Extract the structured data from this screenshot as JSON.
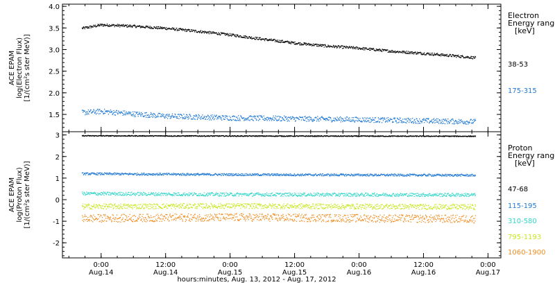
{
  "chart_data": [
    {
      "type": "scatter",
      "panel": "electron",
      "ylabel_lines": [
        "ACE EPAM",
        "log(Electron Flux)",
        "[1/(cm²s ster MeV)]"
      ],
      "ylim": [
        1.1,
        4.05
      ],
      "yticks": [
        1.5,
        2.0,
        2.5,
        3.0,
        3.5,
        4.0
      ],
      "ytick_labels": [
        "1.5",
        "2.0",
        "2.5",
        "3.0",
        "3.5",
        "4.0"
      ],
      "legend_title_lines": [
        "Electron",
        "Energy range",
        "[keV]"
      ],
      "series": [
        {
          "name": "38-53",
          "color": "#000000",
          "x": [
            -0.15,
            0.0,
            0.25,
            0.5,
            0.75,
            1.0,
            1.25,
            1.5,
            1.75,
            2.0,
            2.25,
            2.5,
            2.75,
            2.9
          ],
          "values": [
            3.5,
            3.58,
            3.55,
            3.5,
            3.43,
            3.35,
            3.25,
            3.16,
            3.09,
            3.04,
            2.97,
            2.92,
            2.86,
            2.82
          ],
          "noise": 0.03
        },
        {
          "name": "175-315",
          "color": "#1f78d4",
          "x": [
            -0.15,
            0.0,
            0.25,
            0.5,
            1.0,
            1.5,
            2.0,
            2.5,
            2.9
          ],
          "values": [
            1.55,
            1.58,
            1.52,
            1.47,
            1.43,
            1.41,
            1.39,
            1.36,
            1.34
          ],
          "noise": 0.06
        }
      ]
    },
    {
      "type": "scatter",
      "panel": "proton",
      "ylabel_lines": [
        "ACE EPAM",
        "log(Proton Flux)",
        "[1/(cm²s ster MeV)]"
      ],
      "ylim": [
        -2.7,
        3.15
      ],
      "yticks": [
        -2,
        -1,
        0,
        1,
        2,
        3
      ],
      "ytick_labels": [
        "-2",
        "-1",
        "0",
        "1",
        "2",
        "3"
      ],
      "legend_title_lines": [
        "Proton",
        "Energy range",
        "[keV]"
      ],
      "series": [
        {
          "name": "47-68",
          "color": "#000000",
          "x": [
            -0.15,
            1.0,
            2.9
          ],
          "values": [
            2.98,
            2.97,
            2.96
          ],
          "noise": 0.02
        },
        {
          "name": "115-195",
          "color": "#1f78d4",
          "x": [
            -0.15,
            1.0,
            2.9
          ],
          "values": [
            1.22,
            1.18,
            1.15
          ],
          "noise": 0.05
        },
        {
          "name": "310-580",
          "color": "#33d6c9",
          "x": [
            -0.15,
            1.0,
            2.9
          ],
          "values": [
            0.3,
            0.26,
            0.24
          ],
          "noise": 0.08
        },
        {
          "name": "795-1193",
          "color": "#c8e61e",
          "x": [
            -0.15,
            1.0,
            2.9
          ],
          "values": [
            -0.3,
            -0.27,
            -0.32
          ],
          "noise": 0.12
        },
        {
          "name": "1060-1900",
          "color": "#f08c1e",
          "x": [
            -0.15,
            1.0,
            2.9
          ],
          "values": [
            -0.85,
            -0.8,
            -0.88
          ],
          "noise": 0.18
        }
      ]
    }
  ],
  "x_axis": {
    "unit": "days since Aug.14 00:00",
    "xlim": [
      -0.3,
      3.1
    ],
    "ticks": [
      {
        "x": 0.0,
        "time": "0:00",
        "date": "Aug.14"
      },
      {
        "x": 0.5,
        "time": "12:00",
        "date": "Aug.14"
      },
      {
        "x": 1.0,
        "time": "0:00",
        "date": "Aug.15"
      },
      {
        "x": 1.5,
        "time": "12:00",
        "date": "Aug.15"
      },
      {
        "x": 2.0,
        "time": "0:00",
        "date": "Aug.16"
      },
      {
        "x": 2.5,
        "time": "12:00",
        "date": "Aug.16"
      },
      {
        "x": 3.0,
        "time": "0:00",
        "date": "Aug.17"
      }
    ],
    "minor_step": 0.125,
    "xlabel": "hours:minutes, Aug. 13, 2012 - Aug. 17, 2012"
  }
}
